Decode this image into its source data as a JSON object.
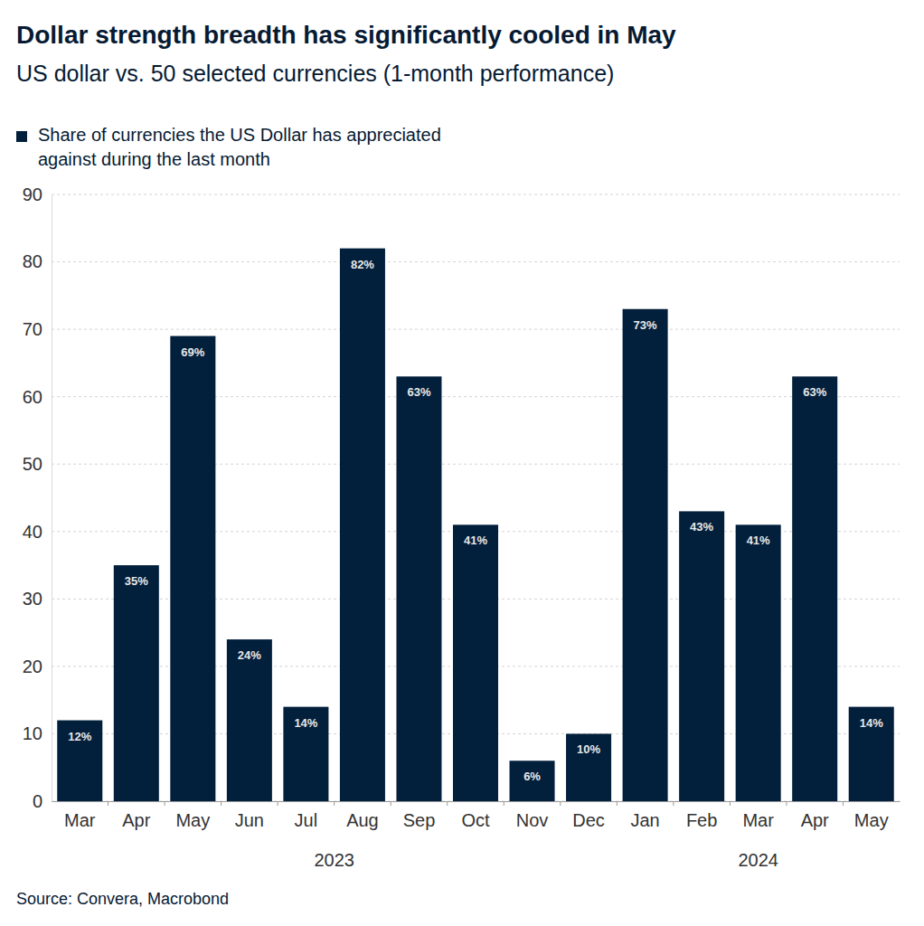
{
  "chart_data": {
    "type": "bar",
    "title": "Dollar strength breadth has significantly cooled in May",
    "subtitle": "US dollar vs. 50 selected currencies (1-month performance)",
    "source": "Source: Convera, Macrobond",
    "categories": [
      "Mar",
      "Apr",
      "May",
      "Jun",
      "Jul",
      "Aug",
      "Sep",
      "Oct",
      "Nov",
      "Dec",
      "Jan",
      "Feb",
      "Mar",
      "Apr",
      "May"
    ],
    "x_groups": [
      {
        "label": "2023",
        "count": 10
      },
      {
        "label": "2024",
        "count": 5
      }
    ],
    "series": [
      {
        "name": "Share of currencies the US Dollar has appreciated against during the last month",
        "color": "#021f3b",
        "values": [
          12,
          35,
          69,
          24,
          14,
          82,
          63,
          41,
          6,
          10,
          73,
          43,
          41,
          63,
          14
        ],
        "value_labels": [
          "12%",
          "35%",
          "69%",
          "24%",
          "14%",
          "82%",
          "63%",
          "41%",
          "6%",
          "10%",
          "73%",
          "43%",
          "41%",
          "63%",
          "14%"
        ]
      }
    ],
    "ylim": [
      0,
      90
    ],
    "yticks": [
      0,
      10,
      20,
      30,
      40,
      50,
      60,
      70,
      80,
      90
    ],
    "grid": true,
    "legend": "top-left",
    "data_labels": true
  }
}
